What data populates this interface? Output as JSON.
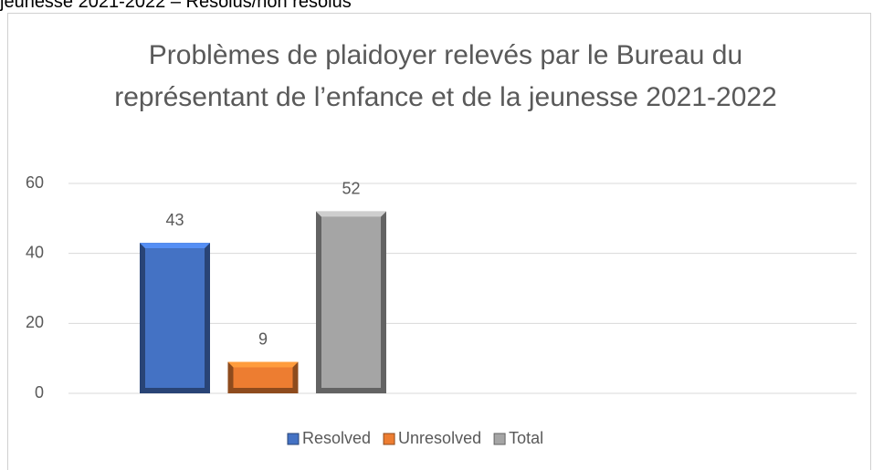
{
  "caption": "jeunesse 2021-2022 – Résolus/non résolus",
  "chart_data": {
    "type": "bar",
    "title": "Problèmes de plaidoyer relevés par le Bureau du représentant de l’enfance et de la jeunesse 2021-2022",
    "categories": [
      null
    ],
    "series": [
      {
        "name": "Resolved",
        "color": "#4472c4",
        "values": [
          43
        ]
      },
      {
        "name": "Unresolved",
        "color": "#ed7d31",
        "values": [
          9
        ]
      },
      {
        "name": "Total",
        "color": "#a5a5a5",
        "values": [
          52
        ]
      }
    ],
    "ylim": [
      0,
      60
    ],
    "yticks": [
      0,
      20,
      40,
      60
    ],
    "grid": true,
    "legend": "bottom"
  }
}
